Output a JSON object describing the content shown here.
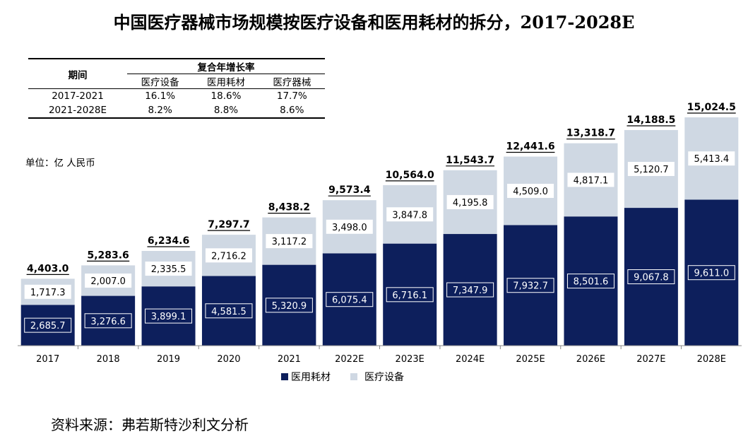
{
  "title": "中国医疗器械市场规模按医疗设备和医用耗材的拆分，2017-2028E",
  "cagr_table": {
    "period_header": "期间",
    "group_header": "复合年增长率",
    "columns": [
      "医疗设备",
      "医用耗材",
      "医疗器械"
    ],
    "rows": [
      {
        "period": "2017-2021",
        "values": [
          "16.1%",
          "18.6%",
          "17.7%"
        ]
      },
      {
        "period": "2021-2028E",
        "values": [
          "8.2%",
          "8.8%",
          "8.6%"
        ]
      }
    ]
  },
  "unit": "单位：亿 人民币",
  "source": "资料来源：弗若斯特沙利文分析",
  "chart_data": {
    "type": "bar",
    "stacked": true,
    "categories": [
      "2017",
      "2018",
      "2019",
      "2020",
      "2021",
      "2022E",
      "2023E",
      "2024E",
      "2025E",
      "2026E",
      "2027E",
      "2028E"
    ],
    "series": [
      {
        "name": "医用耗材",
        "color": "#0d1f5c",
        "values": [
          2685.7,
          3276.6,
          3899.1,
          4581.5,
          5320.9,
          6075.4,
          6716.1,
          7347.9,
          7932.7,
          8501.6,
          9067.8,
          9611.0
        ],
        "labels": [
          "2,685.7",
          "3,276.6",
          "3,899.1",
          "4,581.5",
          "5,320.9",
          "6,075.4",
          "6,716.1",
          "7,347.9",
          "7,932.7",
          "8,501.6",
          "9,067.8",
          "9,611.0"
        ]
      },
      {
        "name": "医疗设备",
        "color": "#cfd8e3",
        "values": [
          1717.3,
          2007.0,
          2335.5,
          2716.2,
          3117.2,
          3498.0,
          3847.8,
          4195.8,
          4509.0,
          4817.1,
          5120.7,
          5413.4
        ],
        "labels": [
          "1,717.3",
          "2,007.0",
          "2,335.5",
          "2,716.2",
          "3,117.2",
          "3,498.0",
          "3,847.8",
          "4,195.8",
          "4,509.0",
          "4,817.1",
          "5,120.7",
          "5,413.4"
        ]
      }
    ],
    "totals": [
      4403.0,
      5283.6,
      6234.6,
      7297.7,
      8438.2,
      9573.4,
      10564.0,
      11543.7,
      12441.6,
      13318.7,
      14188.5,
      15024.5
    ],
    "total_labels": [
      "4,403.0",
      "5,283.6",
      "6,234.6",
      "7,297.7",
      "8,438.2",
      "9,573.4",
      "10,564.0",
      "11,543.7",
      "12,441.6",
      "13,318.7",
      "14,188.5",
      "15,024.5"
    ],
    "legend_position": "bottom-center",
    "grid": false
  }
}
